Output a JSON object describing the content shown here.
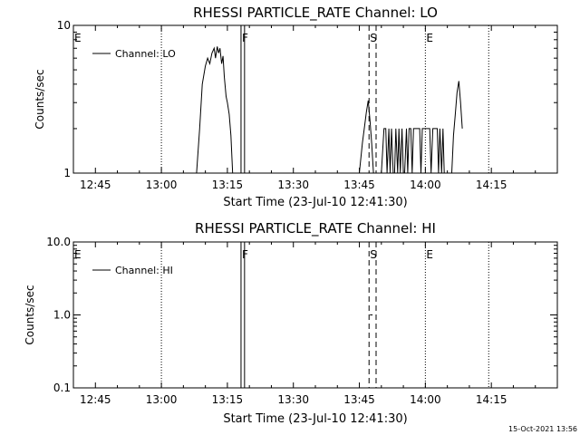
{
  "chart_data": [
    {
      "type": "line",
      "title": "RHESSI PARTICLE_RATE Channel: LO",
      "xlabel": "Start Time (23-Jul-10 12:41:30)",
      "ylabel": "Counts/sec",
      "x_ticks": [
        "12:45",
        "13:00",
        "13:15",
        "13:30",
        "13:45",
        "14:00",
        "14:15"
      ],
      "x_tick_minutes": [
        45,
        60,
        75,
        90,
        105,
        120,
        135
      ],
      "xlim_minutes": [
        40,
        150
      ],
      "y_scale": "log",
      "ylim": [
        1,
        10
      ],
      "y_ticks": [
        "1",
        "10"
      ],
      "y_tick_values": [
        1,
        10
      ],
      "legend": {
        "label": "Channel: LO",
        "position": "top-left"
      },
      "markers": [
        {
          "label": "E",
          "minute": 40,
          "style": "dotted"
        },
        {
          "label": "",
          "minute": 60,
          "style": "dotted"
        },
        {
          "label": "F",
          "minute": 78.1,
          "style": "solid"
        },
        {
          "label": "",
          "minute": 78.9,
          "style": "solid"
        },
        {
          "label": "S",
          "minute": 107.2,
          "style": "dashed"
        },
        {
          "label": "",
          "minute": 108.8,
          "style": "dashed"
        },
        {
          "label": "E",
          "minute": 120,
          "style": "dotted"
        },
        {
          "label": "",
          "minute": 134.4,
          "style": "dotted"
        }
      ],
      "series": [
        {
          "name": "Channel: LO",
          "segments": [
            {
              "x": [
                68.0,
                68.7,
                69.3,
                70.0,
                70.5,
                71.0,
                71.5,
                72.0,
                72.3,
                72.7,
                73.0,
                73.3,
                73.7,
                74.0,
                74.3,
                74.7,
                75.0,
                75.4,
                75.8,
                76.2
              ],
              "y": [
                1.0,
                2.0,
                4.0,
                5.3,
                6.0,
                5.5,
                6.5,
                7.0,
                6.0,
                7.2,
                6.5,
                7.0,
                5.5,
                6.2,
                4.5,
                3.3,
                3.0,
                2.5,
                1.8,
                1.0
              ]
            },
            {
              "x": [
                105.0,
                105.7,
                106.2,
                106.6,
                107.0,
                107.4,
                107.8,
                108.2
              ],
              "y": [
                1.0,
                1.6,
                2.1,
                2.6,
                3.1,
                2.3,
                1.6,
                1.0
              ]
            },
            {
              "x": [
                110.0,
                110.6,
                111.0,
                111.3,
                111.7,
                112.0,
                112.3,
                112.7,
                113.0,
                113.3,
                113.7,
                114.0,
                114.3,
                114.7,
                115.0,
                115.3,
                115.7,
                116.0,
                116.3,
                116.7,
                117.0,
                117.3,
                117.7,
                118.0,
                118.3,
                118.7,
                119.0,
                119.3,
                119.7,
                120.0,
                120.3,
                120.7,
                121.0,
                121.3,
                121.7,
                122.0,
                122.3,
                122.7,
                123.0,
                123.3,
                123.7,
                124.0,
                124.3,
                124.7
              ],
              "y": [
                1.0,
                2.0,
                2.0,
                1.0,
                2.0,
                1.0,
                2.0,
                1.0,
                1.0,
                2.0,
                1.0,
                2.0,
                1.0,
                2.0,
                1.0,
                1.0,
                2.0,
                1.0,
                2.0,
                2.0,
                1.0,
                2.0,
                2.0,
                2.0,
                2.0,
                2.0,
                1.0,
                2.0,
                2.0,
                2.0,
                2.0,
                2.0,
                2.0,
                1.0,
                2.0,
                2.0,
                2.0,
                2.0,
                1.0,
                2.0,
                1.0,
                2.0,
                1.0,
                1.0
              ]
            },
            {
              "x": [
                126.0,
                126.4,
                126.8,
                127.2,
                127.6,
                128.0,
                128.4
              ],
              "y": [
                1.0,
                1.8,
                2.5,
                3.5,
                4.2,
                3.0,
                2.0
              ]
            }
          ]
        }
      ]
    },
    {
      "type": "line",
      "title": "RHESSI PARTICLE_RATE Channel: HI",
      "xlabel": "Start Time (23-Jul-10 12:41:30)",
      "ylabel": "Counts/sec",
      "x_ticks": [
        "12:45",
        "13:00",
        "13:15",
        "13:30",
        "13:45",
        "14:00",
        "14:15"
      ],
      "x_tick_minutes": [
        45,
        60,
        75,
        90,
        105,
        120,
        135
      ],
      "xlim_minutes": [
        40,
        150
      ],
      "y_scale": "log",
      "ylim": [
        0.1,
        10
      ],
      "y_ticks": [
        "0.1",
        "1.0",
        "10.0"
      ],
      "y_tick_values": [
        0.1,
        1,
        10
      ],
      "legend": {
        "label": "Channel: HI",
        "position": "top-left"
      },
      "markers": [
        {
          "label": "E",
          "minute": 40,
          "style": "dotted"
        },
        {
          "label": "",
          "minute": 60,
          "style": "dotted"
        },
        {
          "label": "F",
          "minute": 78.1,
          "style": "solid"
        },
        {
          "label": "",
          "minute": 78.9,
          "style": "solid"
        },
        {
          "label": "S",
          "minute": 107.2,
          "style": "dashed"
        },
        {
          "label": "",
          "minute": 108.8,
          "style": "dashed"
        },
        {
          "label": "E",
          "minute": 120,
          "style": "dotted"
        },
        {
          "label": "",
          "minute": 134.4,
          "style": "dotted"
        }
      ],
      "series": [
        {
          "name": "Channel: HI",
          "segments": [
            {
              "x": [
                107.4,
                108.0
              ],
              "y": [
                1.0,
                1.0
              ]
            }
          ]
        }
      ]
    }
  ],
  "timestamp": "15-Oct-2021 13:56"
}
